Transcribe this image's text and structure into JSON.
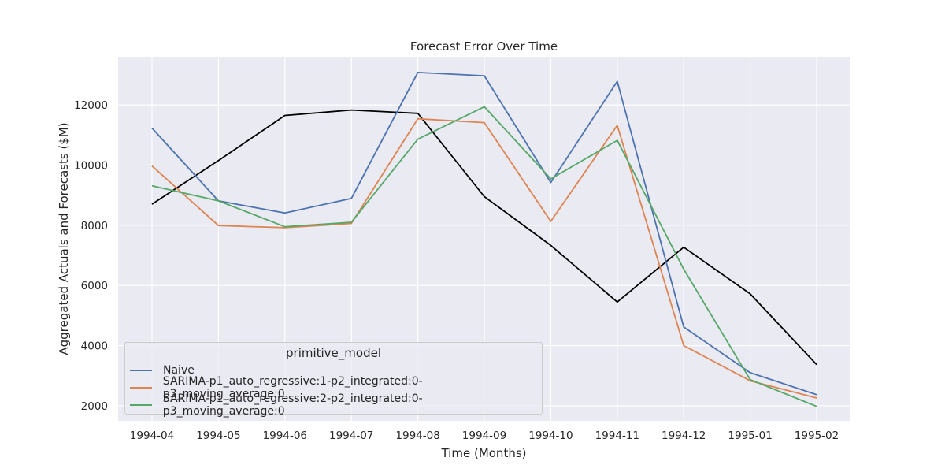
{
  "chart_data": {
    "type": "line",
    "title": "Forecast Error Over Time",
    "xlabel": "Time (Months)",
    "ylabel": "Aggregated Actuals and Forecasts ($M)",
    "categories": [
      "1994-04",
      "1994-05",
      "1994-06",
      "1994-07",
      "1994-08",
      "1994-09",
      "1994-10",
      "1994-11",
      "1994-12",
      "1995-01",
      "1995-02"
    ],
    "yticks": [
      2000,
      4000,
      6000,
      8000,
      10000,
      12000
    ],
    "ylim": [
      1500,
      13600
    ],
    "grid": true,
    "legend": {
      "title": "primitive_model",
      "placement": "lower-left"
    },
    "series": [
      {
        "name": "",
        "color": "#000000",
        "values": [
          8700,
          10150,
          11650,
          11830,
          11720,
          8950,
          7330,
          5450,
          7270,
          5720,
          3370
        ]
      },
      {
        "name": "Naive",
        "color": "#4c72b0",
        "values": [
          11230,
          8810,
          8410,
          8890,
          13080,
          12970,
          9420,
          12780,
          4620,
          3100,
          2370
        ]
      },
      {
        "name": "SARIMA-p1_auto_regressive:1-p2_integrated:0-p3_moving_average:0",
        "color": "#dd8452",
        "values": [
          9970,
          7990,
          7920,
          8060,
          11540,
          11410,
          8130,
          11320,
          4000,
          2830,
          2260
        ]
      },
      {
        "name": "SARIMA-p1_auto_regressive:2-p2_integrated:0-p3_moving_average:0",
        "color": "#55a868",
        "values": [
          9310,
          8810,
          7950,
          8100,
          10860,
          11940,
          9540,
          10820,
          6540,
          2870,
          1980
        ]
      }
    ]
  }
}
